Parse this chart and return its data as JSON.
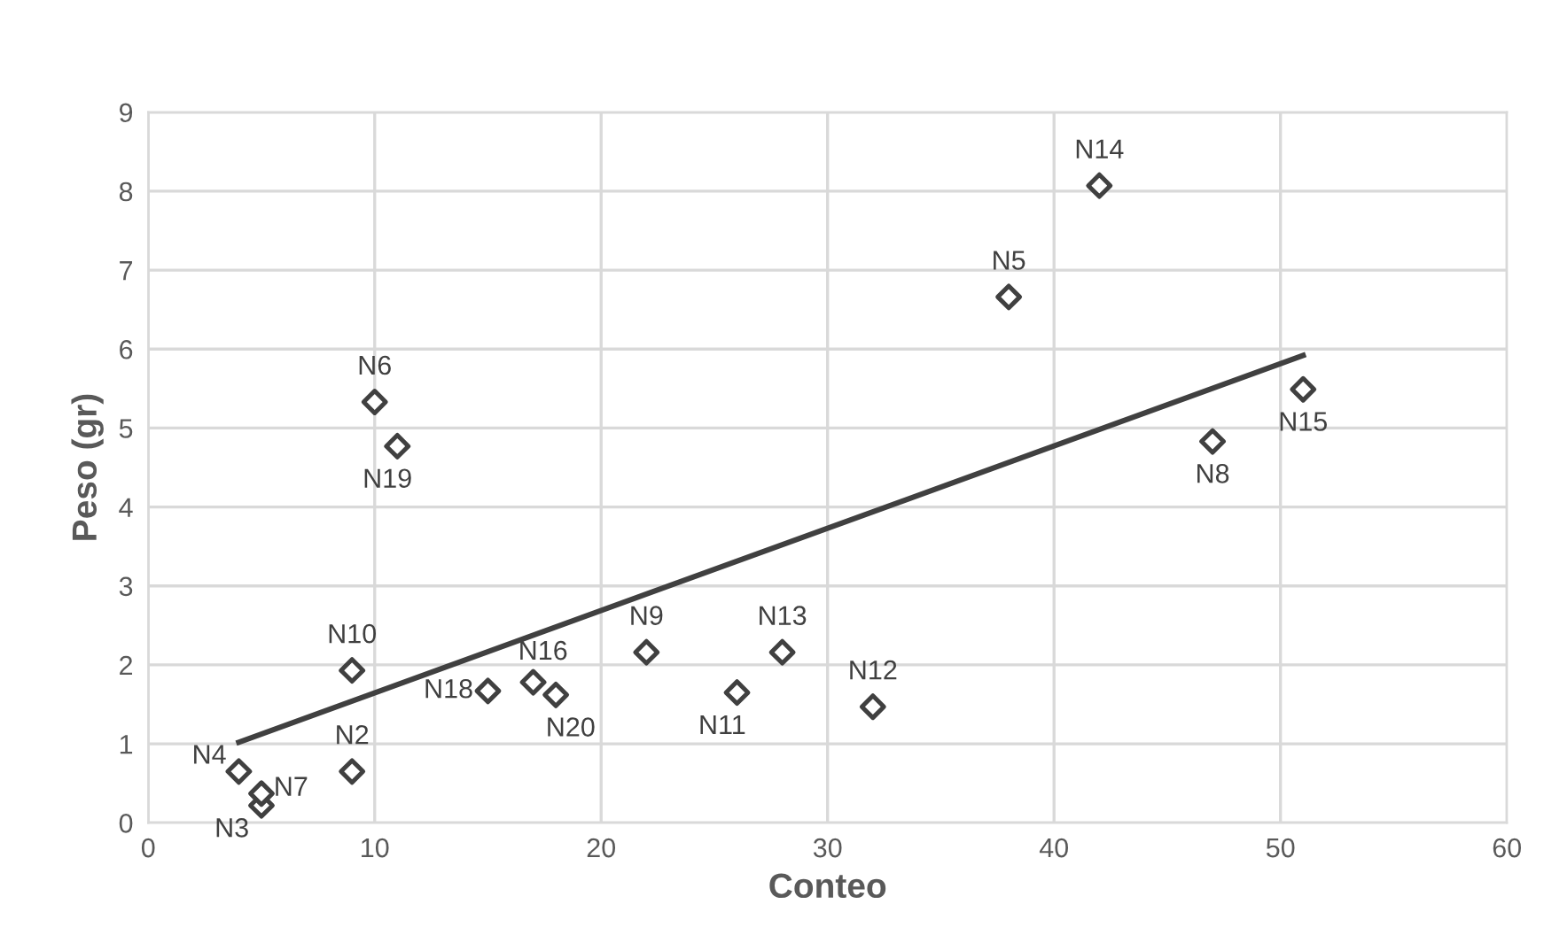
{
  "chart_data": {
    "type": "scatter",
    "xlabel": "Conteo",
    "ylabel": "Peso (gr)",
    "xlim": [
      0,
      60
    ],
    "xticks": [
      0,
      10,
      20,
      30,
      40,
      50,
      60
    ],
    "ylim": [
      0,
      9
    ],
    "yticks": [
      0,
      1,
      2,
      3,
      4,
      5,
      6,
      7,
      8,
      9
    ],
    "grid": true,
    "legend": false,
    "series": [
      {
        "marker": "diamond",
        "color": "#404040",
        "x": [
          4,
          5,
          5,
          9,
          9,
          10,
          11,
          15,
          17,
          18,
          22,
          26,
          28,
          32,
          38,
          42,
          47,
          51
        ],
        "values": [
          0.65,
          0.22,
          0.37,
          0.65,
          1.93,
          5.33,
          4.77,
          1.67,
          1.78,
          1.62,
          2.16,
          1.65,
          2.16,
          1.47,
          6.66,
          8.07,
          4.83,
          5.49
        ]
      },
      {
        "type": "line",
        "color": "#404040",
        "line_style": "solid",
        "x": [
          4,
          51
        ],
        "values": [
          1.02,
          5.92
        ]
      }
    ],
    "annotations": [
      {
        "text": "N4",
        "x": 4,
        "y": 0.65
      },
      {
        "text": "N3",
        "x": 5,
        "y": 0.22
      },
      {
        "text": "N7",
        "x": 5,
        "y": 0.37
      },
      {
        "text": "N2",
        "x": 9,
        "y": 0.65
      },
      {
        "text": "N10",
        "x": 9,
        "y": 1.93
      },
      {
        "text": "N6",
        "x": 10,
        "y": 5.33
      },
      {
        "text": "N19",
        "x": 11,
        "y": 4.77
      },
      {
        "text": "N18",
        "x": 15,
        "y": 1.67
      },
      {
        "text": "N16",
        "x": 17,
        "y": 1.78
      },
      {
        "text": "N20",
        "x": 18,
        "y": 1.62
      },
      {
        "text": "N9",
        "x": 22,
        "y": 2.16
      },
      {
        "text": "N11",
        "x": 26,
        "y": 1.65
      },
      {
        "text": "N13",
        "x": 28,
        "y": 2.16
      },
      {
        "text": "N12",
        "x": 32,
        "y": 1.47
      },
      {
        "text": "N5",
        "x": 38,
        "y": 6.66
      },
      {
        "text": "N14",
        "x": 42,
        "y": 8.07
      },
      {
        "text": "N8",
        "x": 47,
        "y": 4.83
      },
      {
        "text": "N15",
        "x": 51,
        "y": 5.49
      }
    ]
  }
}
